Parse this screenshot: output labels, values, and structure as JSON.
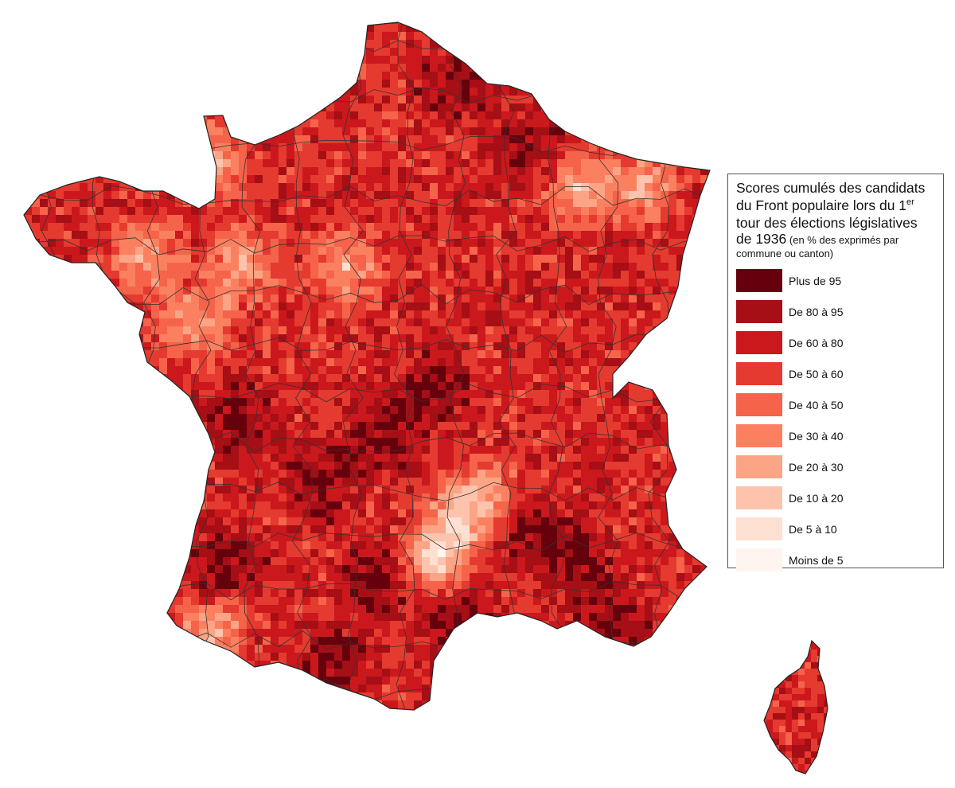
{
  "legend": {
    "title_line1": "Scores cumulés des candidats",
    "title_line2": "du Front populaire lors du 1",
    "title_sup": "er",
    "title_line3": "tour des élections législatives",
    "title_line4_big": "de 1936",
    "title_line4_small": "(en % des exprimés par",
    "title_line5": "commune ou canton)",
    "items": [
      {
        "label": "Plus de 95",
        "color": "#67000d"
      },
      {
        "label": "De 80 à 95",
        "color": "#a50f15"
      },
      {
        "label": "De 60 à 80",
        "color": "#cb181d"
      },
      {
        "label": "De 50 à 60",
        "color": "#e53a2f"
      },
      {
        "label": "De 40 à 50",
        "color": "#f5634a"
      },
      {
        "label": "De 30 à 40",
        "color": "#fb8060"
      },
      {
        "label": "De 20 à 30",
        "color": "#fca486"
      },
      {
        "label": "De 10 à 20",
        "color": "#fdc3ad"
      },
      {
        "label": "De 5 à 10",
        "color": "#fee0d2"
      },
      {
        "label": "Moins de 5",
        "color": "#fff5f0"
      }
    ]
  },
  "map": {
    "regions": [
      "France métropolitaine",
      "Corse"
    ],
    "border_color": "#222222"
  }
}
